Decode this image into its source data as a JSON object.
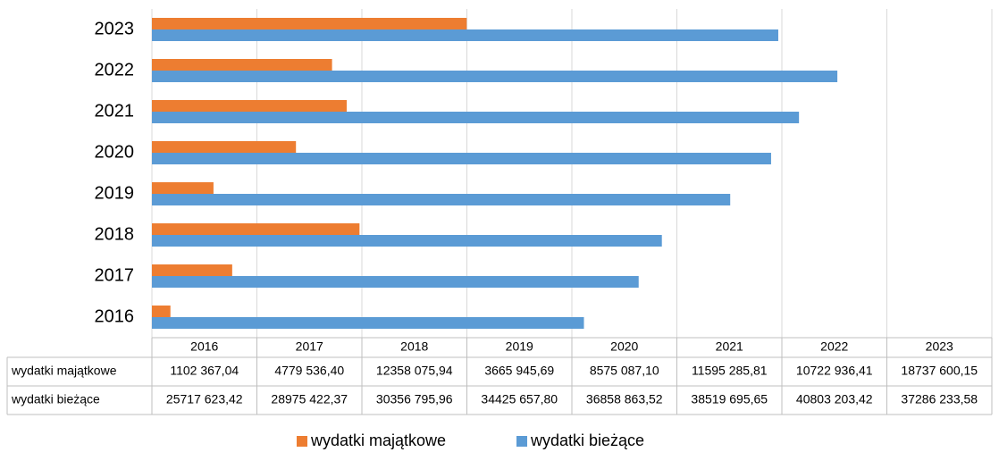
{
  "chart_data": {
    "type": "barh",
    "categories": [
      "2016",
      "2017",
      "2018",
      "2019",
      "2020",
      "2021",
      "2022",
      "2023"
    ],
    "series": [
      {
        "name": "wydatki majątkowe",
        "color": "#ed7d31",
        "values": [
          1102367.04,
          4779536.4,
          12358075.94,
          3665945.69,
          8575087.1,
          11595285.81,
          10722936.41,
          18737600.15
        ],
        "value_labels": [
          "1102 367,04",
          "4779 536,40",
          "12358 075,94",
          "3665 945,69",
          "8575 087,10",
          "11595 285,81",
          "10722 936,41",
          "18737 600,15"
        ]
      },
      {
        "name": "wydatki bieżące",
        "color": "#5b9bd5",
        "values": [
          25717623.42,
          28975422.37,
          30356795.96,
          34425657.8,
          36858863.52,
          38519695.65,
          40803203.42,
          37286233.58
        ],
        "value_labels": [
          "25717 623,42",
          "28975 422,37",
          "30356 795,96",
          "34425 657,80",
          "36858 863,52",
          "38519 695,65",
          "40803 203,42",
          "37286 233,58"
        ]
      }
    ],
    "xlim": [
      0,
      50000000
    ],
    "xticks": [
      0,
      6250000,
      12500000,
      18750000,
      25000000,
      31250000,
      37500000,
      43750000,
      50000000
    ],
    "grid": true,
    "data_table": true,
    "legend": "bottom"
  }
}
